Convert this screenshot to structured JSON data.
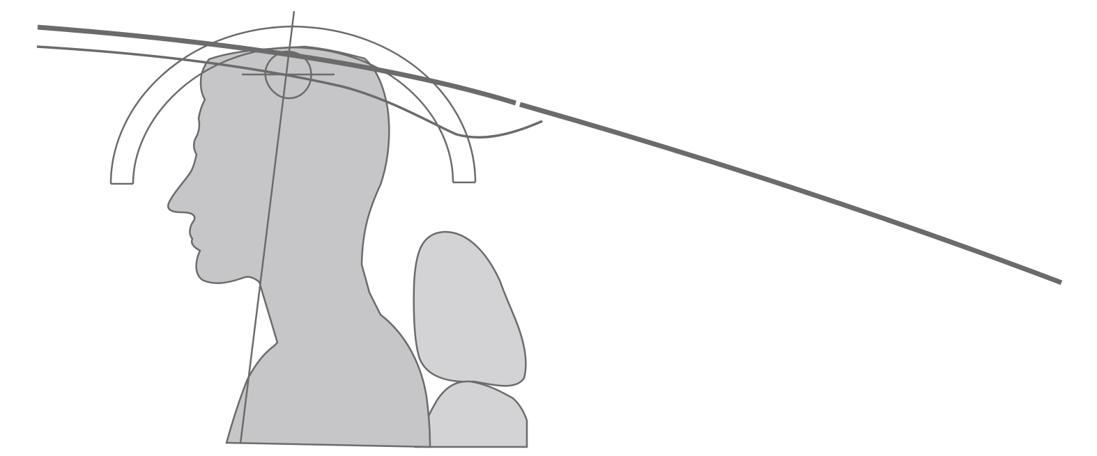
{
  "diagram": {
    "colors": {
      "background": "#ffffff",
      "stroke": "#6b6b6b",
      "head_fill": "#c6c6c8",
      "seat_fill": "#d3d3d5"
    },
    "labels": []
  }
}
